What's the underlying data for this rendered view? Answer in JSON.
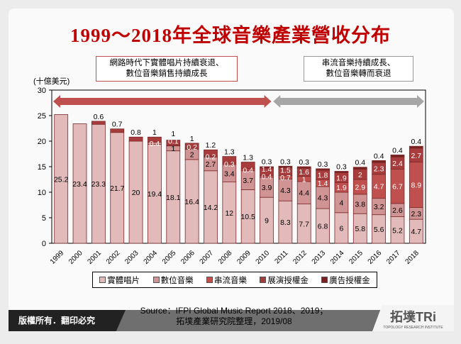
{
  "title": "1999～2018年全球音樂產業營收分布",
  "callouts": {
    "left": [
      "網路時代下實體唱片持續衰退、",
      "數位音樂銷售持續成長"
    ],
    "right": [
      "串流音樂持續成長、",
      "數位音樂轉而衰退"
    ]
  },
  "chart_data": {
    "type": "bar",
    "stacked": true,
    "ylabel": "(十億美元)",
    "ylim": [
      0,
      30
    ],
    "yticks": [
      0,
      5,
      10,
      15,
      20,
      25,
      30
    ],
    "legend_position": "bottom",
    "categories": [
      "1999",
      "2000",
      "2001",
      "2002",
      "2003",
      "2004",
      "2005",
      "2006",
      "2007",
      "2008",
      "2009",
      "2010",
      "2011",
      "2012",
      "2013",
      "2014",
      "2015",
      "2016",
      "2017",
      "2018"
    ],
    "series": [
      {
        "name": "實體唱片",
        "color": "#e2baba",
        "values": [
          25.2,
          23.4,
          23.3,
          21.7,
          20,
          19.4,
          18.1,
          16.4,
          14.2,
          12,
          10.5,
          9,
          8.3,
          7.7,
          6.8,
          6,
          5.8,
          5.6,
          5.2,
          4.7
        ]
      },
      {
        "name": "數位音樂",
        "color": "#d09494",
        "values": [
          null,
          null,
          null,
          null,
          null,
          0.4,
          1,
          2,
          2.7,
          3.4,
          3.7,
          3.9,
          4.3,
          4.4,
          4.3,
          4,
          3.8,
          3.2,
          2.6,
          2.3
        ]
      },
      {
        "name": "串流音樂",
        "color": "#c0504d",
        "values": [
          null,
          null,
          null,
          null,
          null,
          null,
          0.1,
          0.2,
          0.2,
          0.3,
          0.4,
          0.4,
          0.7,
          1,
          1.4,
          1.9,
          2.9,
          4.7,
          6.7,
          8.9
        ]
      },
      {
        "name": "展演授權金",
        "color": "#a83c3c",
        "values": [
          null,
          null,
          0.6,
          0.7,
          0.8,
          1,
          1,
          1,
          1.2,
          1.3,
          1.3,
          1.4,
          1.5,
          1.6,
          1.8,
          1.9,
          2,
          2.3,
          2.4,
          2.7
        ]
      },
      {
        "name": "廣告授權金",
        "color": "#7a2222",
        "values": [
          null,
          null,
          null,
          null,
          null,
          null,
          null,
          null,
          null,
          null,
          null,
          0.3,
          0.3,
          0.3,
          0.3,
          0.3,
          0.4,
          0.4,
          0.4,
          0.4
        ]
      }
    ],
    "arrows": [
      {
        "from": "1999",
        "to": "2010",
        "color": "#c0504d"
      },
      {
        "from": "2010",
        "to": "2018",
        "color": "#a6a6a6"
      }
    ]
  },
  "footer": {
    "copyright": "版權所有．翻印必究",
    "source_line1": "Source：IFPI Global Music Report 2018、2019；",
    "source_line2": "拓墣產業研究院整理，2019/08",
    "logo": "拓墣TRi",
    "logo_sub": "TOPOLOGY RESEARCH INSTITUTE"
  }
}
